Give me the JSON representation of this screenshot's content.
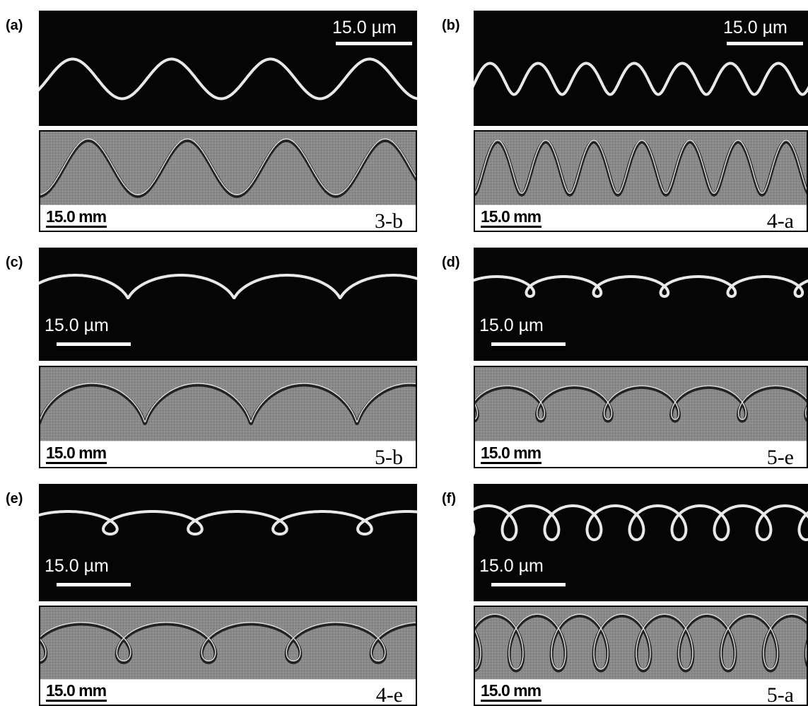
{
  "figure": {
    "panels": [
      {
        "label": "(a)",
        "micro_scale": "15.0 µm",
        "macro_scale": "15.0 mm",
        "code": "3-b"
      },
      {
        "label": "(b)",
        "micro_scale": "15.0 µm",
        "macro_scale": "15.0 mm",
        "code": "4-a"
      },
      {
        "label": "(c)",
        "micro_scale": "15.0 µm",
        "macro_scale": "15.0 mm",
        "code": "5-b"
      },
      {
        "label": "(d)",
        "micro_scale": "15.0 µm",
        "macro_scale": "15.0 mm",
        "code": "5-e"
      },
      {
        "label": "(e)",
        "micro_scale": "15.0 µm",
        "macro_scale": "15.0 mm",
        "code": "4-e"
      },
      {
        "label": "(f)",
        "micro_scale": "15.0 µm",
        "macro_scale": "15.0 mm",
        "code": "5-a"
      }
    ]
  }
}
